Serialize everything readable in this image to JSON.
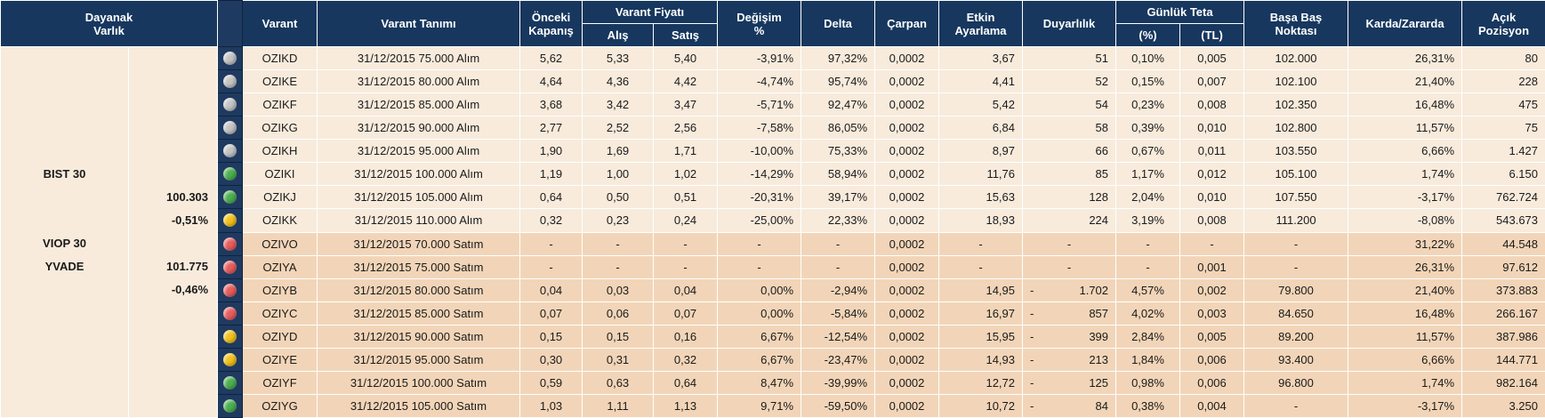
{
  "table": {
    "header": [
      "Dayanak\nVarlık",
      "Varant",
      "Varant Tanımı",
      "Önceki\nKapanış",
      "Varant Fiyatı",
      "Değişim\n%",
      "Delta",
      "Çarpan",
      "Etkin\nAyarlama",
      "Duyarlılık",
      "Günlük Teta",
      "Başa Baş\nNoktası",
      "Karda/Zararda",
      "Açık\nPozisyon",
      "Alış",
      "Satış",
      "(%)",
      "(TL)"
    ],
    "underlying": [
      {
        "name": "BIST 30",
        "value": "100.303",
        "change": "-0,51%"
      },
      {
        "name": "VIOP 30",
        "sub": "YVADE",
        "value": "101.775",
        "change": "-0,46%"
      }
    ],
    "rows": [
      {
        "dot": "#c4c4c4",
        "cells": [
          "OZIKD",
          "31/12/2015 75.000 Alım",
          "5,62",
          "5,33",
          "5,40",
          "-3,91%",
          "97,32%",
          "0,0002",
          "3,67",
          "51",
          "0,10%",
          "0,005",
          "102.000",
          "26,31%",
          "80"
        ]
      },
      {
        "dot": "#c4c4c4",
        "cells": [
          "OZIKE",
          "31/12/2015 80.000 Alım",
          "4,64",
          "4,36",
          "4,42",
          "-4,74%",
          "95,74%",
          "0,0002",
          "4,41",
          "52",
          "0,15%",
          "0,007",
          "102.100",
          "21,40%",
          "228"
        ]
      },
      {
        "dot": "#c4c4c4",
        "cells": [
          "OZIKF",
          "31/12/2015 85.000 Alım",
          "3,68",
          "3,42",
          "3,47",
          "-5,71%",
          "92,47%",
          "0,0002",
          "5,42",
          "54",
          "0,23%",
          "0,008",
          "102.350",
          "16,48%",
          "475"
        ]
      },
      {
        "dot": "#c4c4c4",
        "cells": [
          "OZIKG",
          "31/12/2015 90.000 Alım",
          "2,77",
          "2,52",
          "2,56",
          "-7,58%",
          "86,05%",
          "0,0002",
          "6,84",
          "58",
          "0,39%",
          "0,010",
          "102.800",
          "11,57%",
          "75"
        ]
      },
      {
        "dot": "#c4c4c4",
        "cells": [
          "OZIKH",
          "31/12/2015 95.000 Alım",
          "1,90",
          "1,69",
          "1,71",
          "-10,00%",
          "75,33%",
          "0,0002",
          "8,97",
          "66",
          "0,67%",
          "0,011",
          "103.550",
          "6,66%",
          "1.427"
        ]
      },
      {
        "dot": "#4caf50",
        "cells": [
          "OZIKI",
          "31/12/2015 100.000 Alım",
          "1,19",
          "1,00",
          "1,02",
          "-14,29%",
          "58,94%",
          "0,0002",
          "11,76",
          "85",
          "1,17%",
          "0,012",
          "105.100",
          "1,74%",
          "6.150"
        ]
      },
      {
        "dot": "#4caf50",
        "cells": [
          "OZIKJ",
          "31/12/2015 105.000 Alım",
          "0,64",
          "0,50",
          "0,51",
          "-20,31%",
          "39,17%",
          "0,0002",
          "15,63",
          "128",
          "2,04%",
          "0,010",
          "107.550",
          "-3,17%",
          "762.724"
        ]
      },
      {
        "dot": "#f2c21b",
        "cells": [
          "OZIKK",
          "31/12/2015 110.000 Alım",
          "0,32",
          "0,23",
          "0,24",
          "-25,00%",
          "22,33%",
          "0,0002",
          "18,93",
          "224",
          "3,19%",
          "0,008",
          "111.200",
          "-8,08%",
          "543.673"
        ]
      },
      {
        "dot": "#e85c5c",
        "cells": [
          "OZIVO",
          "31/12/2015 70.000 Satım",
          "-",
          "-",
          "-",
          "-",
          "-",
          "0,0002",
          "-",
          "-",
          "-",
          "-",
          "-",
          "31,22%",
          "44.548"
        ]
      },
      {
        "dot": "#e85c5c",
        "cells": [
          "OZIYA",
          "31/12/2015 75.000 Satım",
          "-",
          "-",
          "-",
          "-",
          "-",
          "0,0002",
          "-",
          "-",
          "-",
          "0,001",
          "-",
          "26,31%",
          "97.612"
        ]
      },
      {
        "dot": "#e85c5c",
        "cells": [
          "OZIYB",
          "31/12/2015 80.000 Satım",
          "0,04",
          "0,03",
          "0,04",
          "0,00%",
          "-2,94%",
          "0,0002",
          "14,95",
          "- 1.702",
          "4,57%",
          "0,002",
          "79.800",
          "21,40%",
          "373.883"
        ]
      },
      {
        "dot": "#e85c5c",
        "cells": [
          "OZIYC",
          "31/12/2015 85.000 Satım",
          "0,07",
          "0,06",
          "0,07",
          "0,00%",
          "-5,84%",
          "0,0002",
          "16,97",
          "- 857",
          "4,02%",
          "0,003",
          "84.650",
          "16,48%",
          "266.167"
        ]
      },
      {
        "dot": "#f2c21b",
        "cells": [
          "OZIYD",
          "31/12/2015 90.000 Satım",
          "0,15",
          "0,15",
          "0,16",
          "6,67%",
          "-12,54%",
          "0,0002",
          "15,95",
          "- 399",
          "2,84%",
          "0,005",
          "89.200",
          "11,57%",
          "387.986"
        ]
      },
      {
        "dot": "#f2c21b",
        "cells": [
          "OZIYE",
          "31/12/2015 95.000 Satım",
          "0,30",
          "0,31",
          "0,32",
          "6,67%",
          "-23,47%",
          "0,0002",
          "14,93",
          "- 213",
          "1,84%",
          "0,006",
          "93.400",
          "6,66%",
          "144.771"
        ]
      },
      {
        "dot": "#4caf50",
        "cells": [
          "OZIYF",
          "31/12/2015 100.000 Satım",
          "0,59",
          "0,63",
          "0,64",
          "8,47%",
          "-39,99%",
          "0,0002",
          "12,72",
          "- 125",
          "0,98%",
          "0,006",
          "96.800",
          "1,74%",
          "982.164"
        ]
      },
      {
        "dot": "#4caf50",
        "cells": [
          "OZIYG",
          "31/12/2015 105.000 Satım",
          "1,03",
          "1,11",
          "1,13",
          "9,71%",
          "-59,50%",
          "0,0002",
          "10,72",
          "- 84",
          "0,38%",
          "0,004",
          "-",
          "-3,17%",
          "3.250"
        ]
      }
    ]
  }
}
